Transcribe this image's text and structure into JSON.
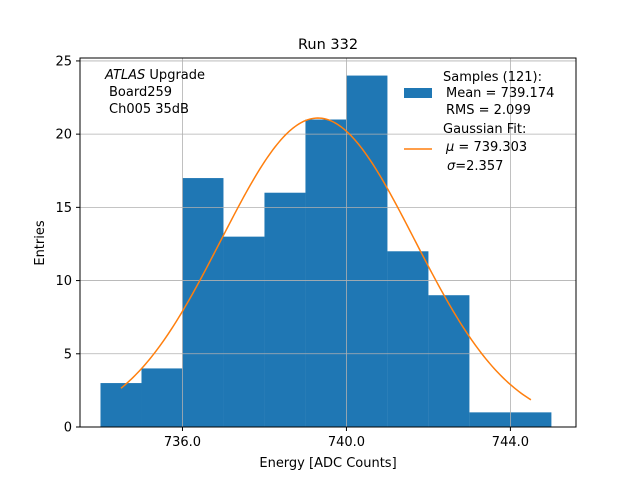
{
  "chart_data": {
    "type": "bar",
    "title": "Run 332",
    "xlabel": "Energy [ADC Counts]",
    "ylabel": "Entries",
    "xlim": [
      733.5,
      745.6
    ],
    "ylim": [
      0,
      25.2
    ],
    "xticks": [
      736.0,
      740.0,
      744.0
    ],
    "xtick_labels": [
      "736.0",
      "740.0",
      "744.0"
    ],
    "yticks": [
      0,
      5,
      10,
      15,
      20,
      25
    ],
    "ytick_labels": [
      "0",
      "5",
      "10",
      "15",
      "20",
      "25"
    ],
    "grid": true,
    "bins": [
      734.0,
      735.0,
      736.0,
      737.0,
      738.0,
      739.0,
      740.0,
      741.0,
      742.0,
      743.0,
      744.0,
      745.0
    ],
    "counts": [
      3,
      4,
      17,
      13,
      16,
      21,
      24,
      12,
      9,
      1,
      1
    ],
    "histogram_color": "#1f77b4",
    "fit": {
      "type": "gaussian",
      "mu": 739.303,
      "sigma": 2.357,
      "amplitude": 21.1,
      "x_range": [
        734.5,
        744.5
      ],
      "color": "#ff7f0e"
    },
    "annotation": {
      "atlas": "ATLAS",
      "upgrade": "Upgrade",
      "line2": "Board259",
      "line3": "Ch005 35dB"
    },
    "legend": {
      "placement": "top-right",
      "samples_title": "Samples (121):",
      "mean_line": "Mean = 739.174",
      "rms_line": "RMS = 2.099",
      "fit_title": "Gaussian Fit:",
      "mu_symbol": "μ",
      "mu_value": " = 739.303",
      "sigma_symbol": "σ",
      "sigma_value": "=2.357"
    }
  }
}
